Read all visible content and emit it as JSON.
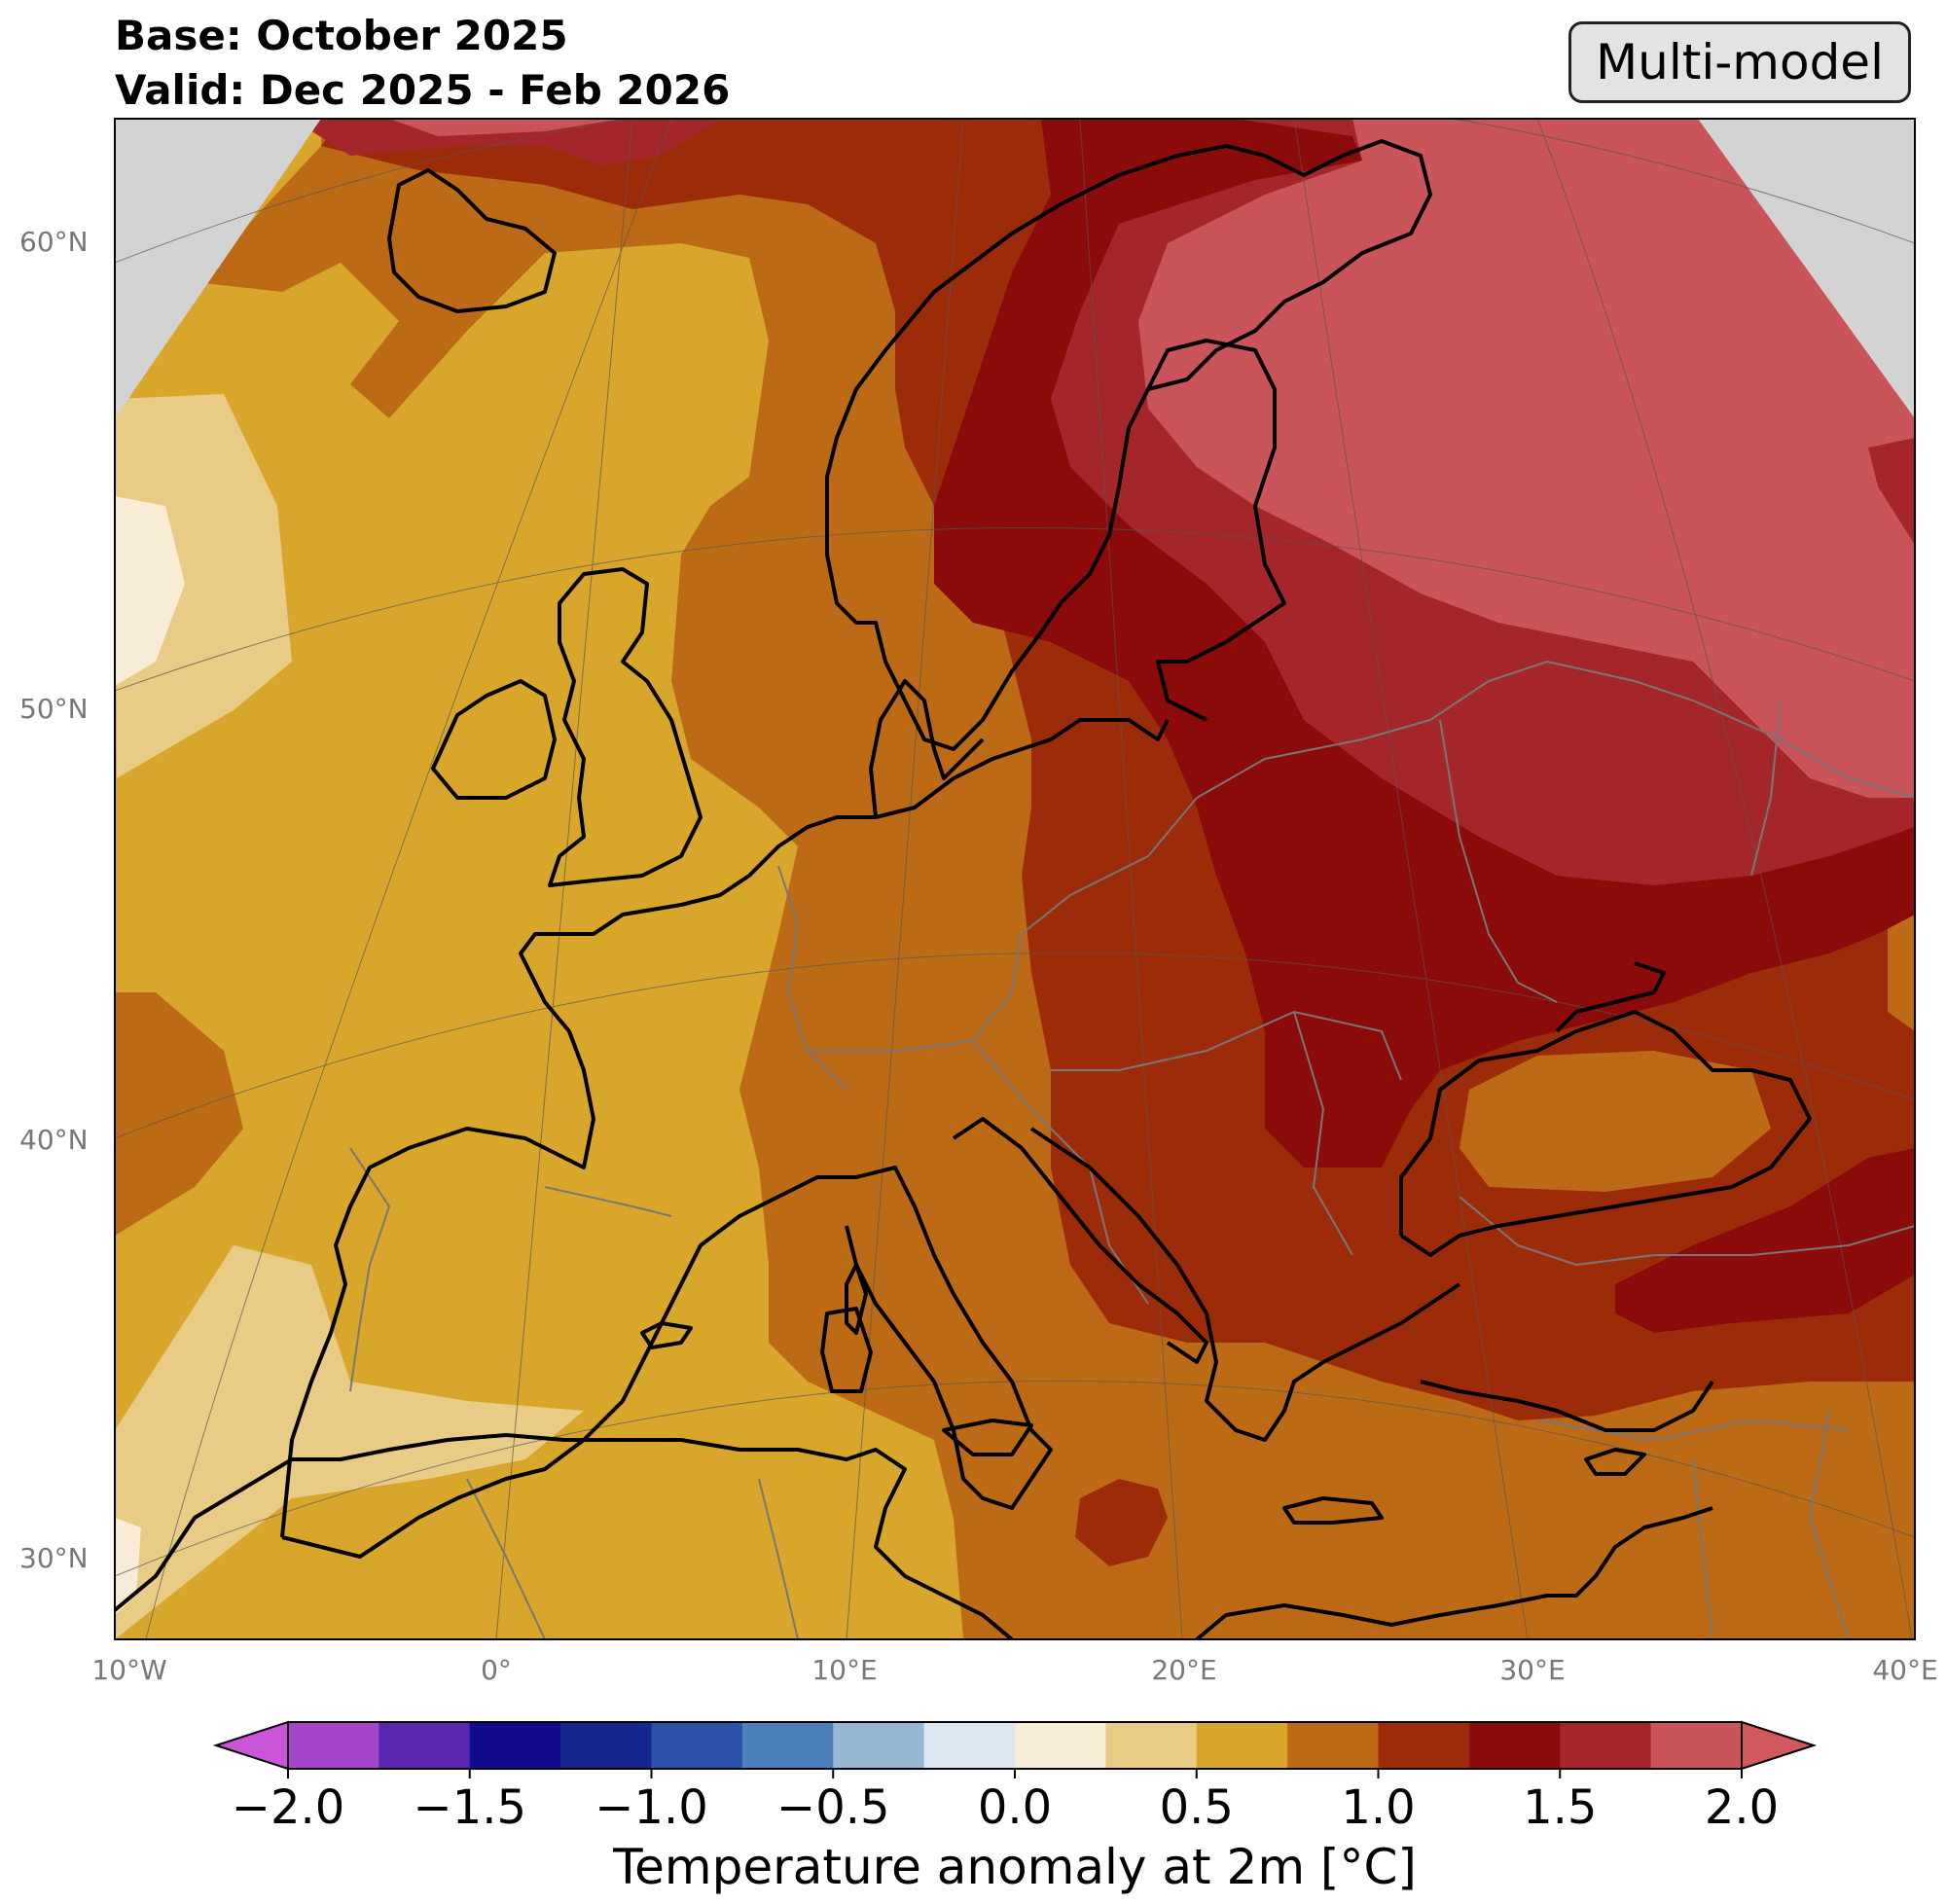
{
  "header": {
    "base_line": "Base: October 2025",
    "valid_line": "Valid: Dec 2025 - Feb 2026",
    "model_badge": "Multi-model"
  },
  "map": {
    "latitude_labels": [
      "60°N",
      "50°N",
      "40°N",
      "30°N"
    ],
    "longitude_labels": [
      "10°W",
      "0°",
      "10°E",
      "20°E",
      "30°E",
      "40°E"
    ],
    "gridlines": true
  },
  "colorbar": {
    "label": "Temperature anomaly at 2m [°C]",
    "ticks": [
      "−2.0",
      "−1.5",
      "−1.0",
      "−0.5",
      "0.0",
      "0.5",
      "1.0",
      "1.5",
      "2.0"
    ],
    "extend": "both",
    "levels": [
      -2.0,
      -1.75,
      -1.5,
      -1.25,
      -1.0,
      -0.75,
      -0.5,
      -0.25,
      0.0,
      0.25,
      0.5,
      0.75,
      1.0,
      1.25,
      1.5,
      1.75,
      2.0
    ],
    "colors": [
      "#a545c9",
      "#5a26b0",
      "#100a8f",
      "#16268f",
      "#2a52a6",
      "#4d80b8",
      "#97b6d2",
      "#dce6f0",
      "#f8ecd6",
      "#e8cb85",
      "#d9a62c",
      "#bd6a17",
      "#9c2c09",
      "#8b0a0a",
      "#a5262a",
      "#c9555a"
    ],
    "under_color": "#c955d9",
    "over_color": "#d25860"
  }
}
